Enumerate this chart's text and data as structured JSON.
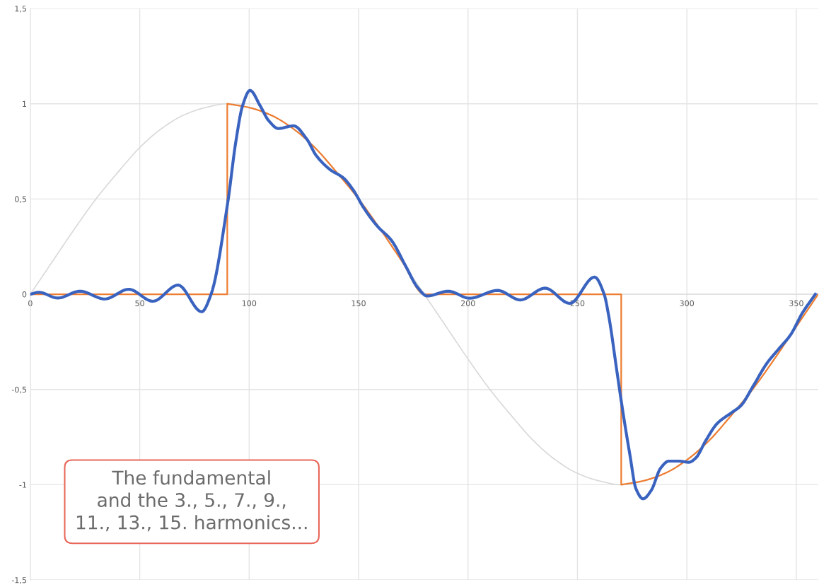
{
  "chart_data": {
    "type": "line",
    "xlim": [
      0,
      360
    ],
    "xticks": [
      0,
      50,
      100,
      150,
      200,
      250,
      300,
      350
    ],
    "ylim": [
      -1.5,
      1.5
    ],
    "yticks": [
      {
        "value": -1.5,
        "label": "-1,5"
      },
      {
        "value": -1,
        "label": "-1"
      },
      {
        "value": -0.5,
        "label": "-0,5"
      },
      {
        "value": 0,
        "label": "0"
      },
      {
        "value": 0.5,
        "label": "0,5"
      },
      {
        "value": 1,
        "label": "1"
      },
      {
        "value": 1.5,
        "label": "1,5"
      }
    ],
    "grid": true,
    "marker": "none",
    "series": [
      {
        "color": "#d9d9d9",
        "x": [
          0,
          10,
          20,
          30,
          40,
          50,
          60,
          70,
          80,
          90,
          100,
          110,
          120,
          130,
          140,
          150,
          160,
          170,
          180,
          190,
          200,
          210,
          220,
          230,
          240,
          250,
          260,
          270,
          280,
          290,
          300,
          310,
          320,
          330,
          340,
          350,
          360
        ],
        "values": [
          0,
          0.17,
          0.34,
          0.5,
          0.64,
          0.77,
          0.87,
          0.94,
          0.98,
          1,
          0.98,
          0.94,
          0.87,
          0.77,
          0.64,
          0.5,
          0.34,
          0.17,
          0,
          -0.17,
          -0.34,
          -0.5,
          -0.64,
          -0.77,
          -0.87,
          -0.94,
          -0.98,
          -1,
          -0.98,
          -0.94,
          -0.87,
          -0.77,
          -0.64,
          -0.5,
          -0.34,
          -0.17,
          0
        ]
      },
      {
        "color": "#ed7d31",
        "x": [
          0,
          90,
          90,
          100,
          110,
          120,
          130,
          140,
          150,
          160,
          170,
          180,
          270,
          270,
          280,
          290,
          300,
          310,
          320,
          330,
          340,
          350,
          360
        ],
        "values": [
          0,
          0,
          1,
          0.98,
          0.94,
          0.87,
          0.77,
          0.64,
          0.5,
          0.34,
          0.17,
          0,
          0,
          -1,
          -0.98,
          -0.94,
          -0.87,
          -0.77,
          -0.64,
          -0.5,
          -0.34,
          -0.17,
          0
        ]
      },
      {
        "color": "#3a63c0",
        "x": [
          0,
          4,
          12.5,
          22.7,
          34,
          45,
          56,
          67.5,
          78.3,
          82.6,
          90.2,
          93.9,
          97,
          100.4,
          105,
          109,
          113.3,
          120.3,
          126.3,
          130.6,
          137,
          143,
          147.8,
          152.2,
          158.6,
          165,
          171.6,
          177,
          181.3,
          191,
          200.7,
          213.6,
          223.9,
          235.2,
          246.5,
          257.8,
          262.2,
          264.3,
          268.1,
          270.8,
          274,
          276.7,
          280,
          283.7,
          288,
          291.8,
          296.1,
          301,
          304.2,
          308.5,
          313.9,
          320.4,
          324.7,
          330.1,
          336.6,
          342,
          347.4,
          352.7,
          358.7
        ],
        "values": [
          0,
          0.01,
          -0.02,
          0.016,
          -0.025,
          0.026,
          -0.037,
          0.048,
          -0.092,
          0,
          0.48,
          0.8,
          0.99,
          1.07,
          0.99,
          0.91,
          0.87,
          0.884,
          0.815,
          0.729,
          0.654,
          0.611,
          0.543,
          0.456,
          0.357,
          0.283,
          0.146,
          0.035,
          -0.009,
          0.016,
          -0.021,
          0.02,
          -0.03,
          0.032,
          -0.048,
          0.09,
          0,
          -0.114,
          -0.41,
          -0.62,
          -0.845,
          -1.02,
          -1.074,
          -1.03,
          -0.913,
          -0.876,
          -0.876,
          -0.882,
          -0.858,
          -0.771,
          -0.678,
          -0.622,
          -0.585,
          -0.486,
          -0.362,
          -0.287,
          -0.213,
          -0.1,
          0
        ]
      }
    ],
    "annotations": [
      "The fundamental\nand the 3., 5., 7., 9.,\n11., 13., 15. harmonics..."
    ]
  }
}
